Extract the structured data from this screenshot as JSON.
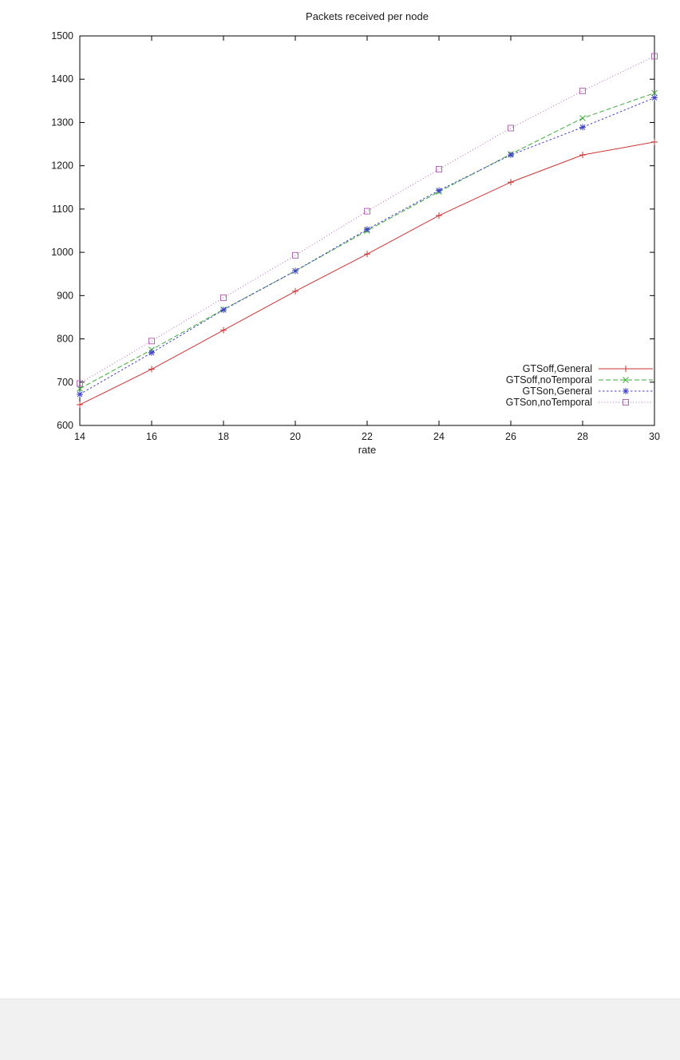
{
  "page": {
    "background": "#ffffff",
    "footer_color": "#f1f1f2",
    "text_color": "#1a1a1a",
    "axis_color": "#000000"
  },
  "chart_data": {
    "type": "line",
    "title": "Packets received per node",
    "xlabel": "rate",
    "ylabel": "",
    "xlim": [
      14,
      30
    ],
    "ylim": [
      600,
      1500
    ],
    "xticks": [
      14,
      16,
      18,
      20,
      22,
      24,
      26,
      28,
      30
    ],
    "yticks": [
      600,
      700,
      800,
      900,
      1000,
      1100,
      1200,
      1300,
      1400,
      1500
    ],
    "grid": false,
    "legend_position": "inside bottom-right",
    "x": [
      14,
      16,
      18,
      20,
      22,
      24,
      26,
      28,
      30
    ],
    "series": [
      {
        "name": "GTSoff,General",
        "color": "#cc3333",
        "marker": "plus",
        "dash": "solid",
        "values": [
          648,
          730,
          820,
          910,
          996,
          1085,
          1162,
          1225,
          1255
        ]
      },
      {
        "name": "GTSoff,noTemporal",
        "color": "#3faa3f",
        "marker": "cross",
        "dash": "dashed",
        "values": [
          685,
          775,
          868,
          957,
          1050,
          1140,
          1227,
          1310,
          1368
        ]
      },
      {
        "name": "GTSon,General",
        "color": "#4040c8",
        "marker": "star",
        "dash": "dotted",
        "values": [
          672,
          768,
          867,
          957,
          1053,
          1143,
          1225,
          1289,
          1357
        ]
      },
      {
        "name": "GTSon,noTemporal",
        "color": "#b666b6",
        "marker": "square",
        "dash": "fine-dot",
        "values": [
          697,
          795,
          895,
          993,
          1095,
          1192,
          1287,
          1373,
          1453
        ]
      }
    ]
  }
}
